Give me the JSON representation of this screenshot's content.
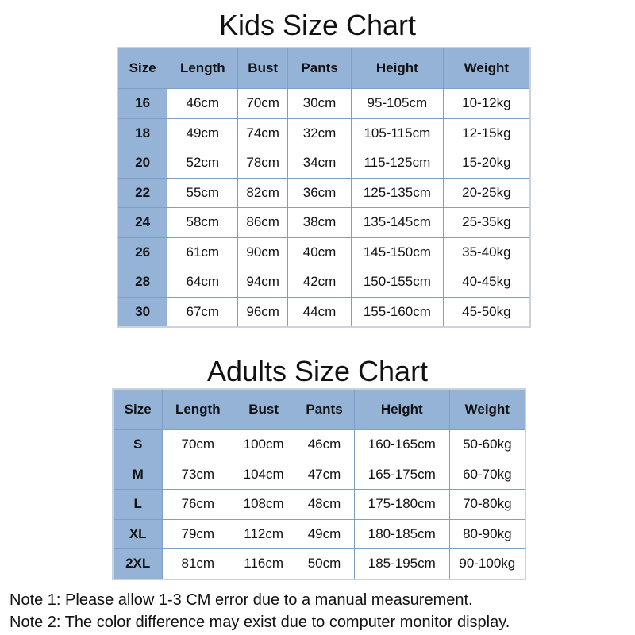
{
  "kids": {
    "title": "Kids Size Chart",
    "headers": [
      "Size",
      "Length",
      "Bust",
      "Pants",
      "Height",
      "Weight"
    ],
    "rows": [
      [
        "16",
        "46cm",
        "70cm",
        "30cm",
        "95-105cm",
        "10-12kg"
      ],
      [
        "18",
        "49cm",
        "74cm",
        "32cm",
        "105-115cm",
        "12-15kg"
      ],
      [
        "20",
        "52cm",
        "78cm",
        "34cm",
        "115-125cm",
        "15-20kg"
      ],
      [
        "22",
        "55cm",
        "82cm",
        "36cm",
        "125-135cm",
        "20-25kg"
      ],
      [
        "24",
        "58cm",
        "86cm",
        "38cm",
        "135-145cm",
        "25-35kg"
      ],
      [
        "26",
        "61cm",
        "90cm",
        "40cm",
        "145-150cm",
        "35-40kg"
      ],
      [
        "28",
        "64cm",
        "94cm",
        "42cm",
        "150-155cm",
        "40-45kg"
      ],
      [
        "30",
        "67cm",
        "96cm",
        "44cm",
        "155-160cm",
        "45-50kg"
      ]
    ]
  },
  "adults": {
    "title": "Adults Size Chart",
    "headers": [
      "Size",
      "Length",
      "Bust",
      "Pants",
      "Height",
      "Weight"
    ],
    "rows": [
      [
        "S",
        "70cm",
        "100cm",
        "46cm",
        "160-165cm",
        "50-60kg"
      ],
      [
        "M",
        "73cm",
        "104cm",
        "47cm",
        "165-175cm",
        "60-70kg"
      ],
      [
        "L",
        "76cm",
        "108cm",
        "48cm",
        "175-180cm",
        "70-80kg"
      ],
      [
        "XL",
        "79cm",
        "112cm",
        "49cm",
        "180-185cm",
        "80-90kg"
      ],
      [
        "2XL",
        "81cm",
        "116cm",
        "50cm",
        "185-195cm",
        "90-100kg"
      ]
    ]
  },
  "notes": [
    "Note 1: Please allow 1-3 CM error due to a manual measurement.",
    "Note 2: The color difference may exist due to computer monitor display."
  ],
  "colors": {
    "header": "#95b3d7",
    "border": "#7f9fc9"
  }
}
